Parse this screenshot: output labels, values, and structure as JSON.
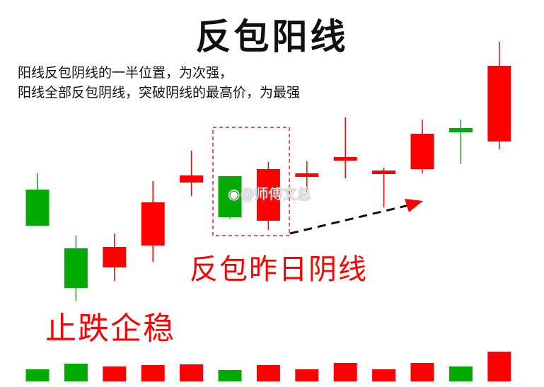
{
  "title": "反包阳线",
  "notes": [
    "阳线反包阴线的一半位置，为次强，",
    "阳线全部反包阴线，突破阴线的最高价，为最强"
  ],
  "annotations": {
    "engulf": "反包昨日阴线",
    "stop_fall": "止跌企稳"
  },
  "watermark": "@师傅文总",
  "colors": {
    "up": "#ff0000",
    "down": "#00aa00",
    "highlight_box": "#e02020",
    "arrow": "#111111"
  },
  "chart_data": {
    "type": "candlestick",
    "note": "no axes printed; prices in relative units",
    "candles": [
      {
        "open": 23.2,
        "high": 25.5,
        "low": 18.0,
        "close": 18.1
      },
      {
        "open": 14.9,
        "high": 16.7,
        "low": 7.5,
        "close": 9.3
      },
      {
        "open": 12.2,
        "high": 17.0,
        "low": 10.3,
        "close": 15.1
      },
      {
        "open": 15.3,
        "high": 24.4,
        "low": 13.0,
        "close": 21.4
      },
      {
        "open": 24.2,
        "high": 28.7,
        "low": 22.3,
        "close": 25.2
      },
      {
        "open": 25.1,
        "high": 25.1,
        "low": 19.1,
        "close": 19.3
      },
      {
        "open": 18.8,
        "high": 27.1,
        "low": 17.5,
        "close": 26.1
      },
      {
        "open": 25.0,
        "high": 27.2,
        "low": 22.9,
        "close": 25.5
      },
      {
        "open": 27.3,
        "high": 33.4,
        "low": 24.8,
        "close": 27.8
      },
      {
        "open": 25.4,
        "high": 26.3,
        "low": 20.7,
        "close": 25.9
      },
      {
        "open": 26.1,
        "high": 33.1,
        "low": 25.5,
        "close": 31.1
      },
      {
        "open": 31.9,
        "high": 33.1,
        "low": 26.8,
        "close": 31.3
      },
      {
        "open": 30.0,
        "high": 44.1,
        "low": 28.9,
        "close": 40.7
      }
    ],
    "volume": [
      17,
      25,
      21,
      23,
      24,
      16,
      23,
      17,
      26,
      17,
      26,
      21,
      42
    ],
    "highlighted_candles": [
      6,
      7
    ]
  }
}
